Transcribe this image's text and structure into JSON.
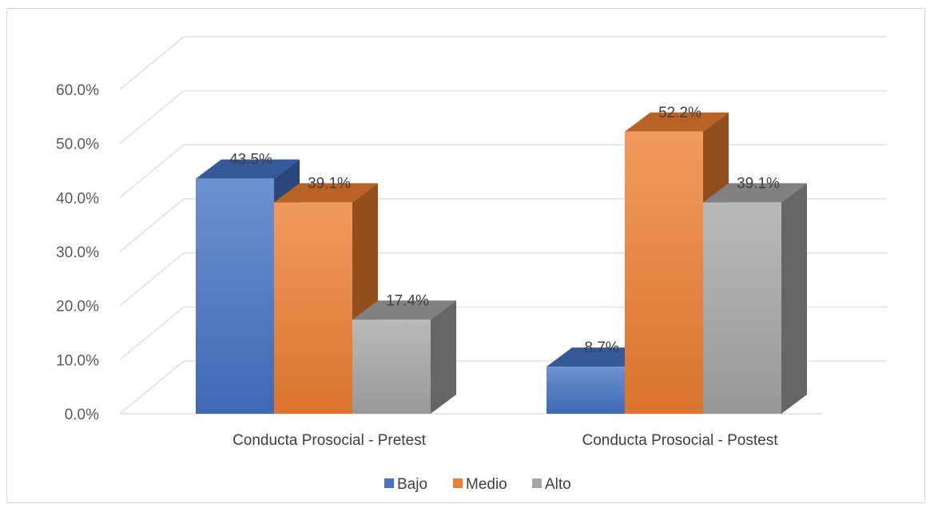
{
  "chart_data": {
    "type": "bar",
    "style": "3d-clustered-column",
    "categories": [
      "Conducta Prosocial - Pretest",
      "Conducta Prosocial -  Postest"
    ],
    "series": [
      {
        "name": "Bajo",
        "values": [
          43.5,
          8.7
        ],
        "labels": [
          "43.5%",
          "8.7%"
        ],
        "color": "#4472C4"
      },
      {
        "name": "Medio",
        "values": [
          39.1,
          52.2
        ],
        "labels": [
          "39.1%",
          "52.2%"
        ],
        "color": "#ED7D31"
      },
      {
        "name": "Alto",
        "values": [
          17.4,
          39.1
        ],
        "labels": [
          "17.4%",
          "39.1%"
        ],
        "color": "#A5A5A5"
      }
    ],
    "y_ticks": [
      "0.0%",
      "10.0%",
      "20.0%",
      "30.0%",
      "40.0%",
      "50.0%",
      "60.0%"
    ],
    "ylim": [
      0,
      60
    ],
    "grid": true,
    "legend_position": "bottom"
  }
}
